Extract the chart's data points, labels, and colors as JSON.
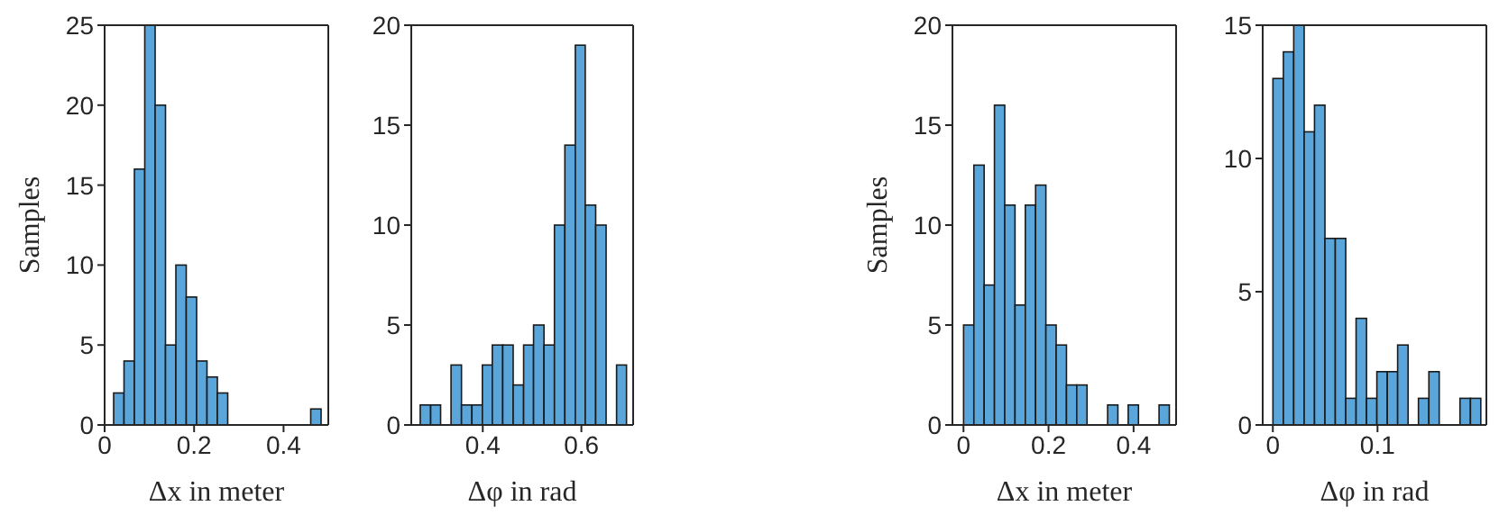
{
  "chart_data": [
    {
      "type": "histogram",
      "color": "#5aa5d9",
      "ylabel": "Samples",
      "xlabel": "Δx in meter",
      "xlim": [
        0,
        0.5
      ],
      "xticks": [
        0,
        0.2,
        0.4
      ],
      "ylim": [
        0,
        25
      ],
      "yticks": [
        0,
        5,
        10,
        15,
        20,
        25
      ],
      "bins": [
        0.02,
        0.043,
        0.066,
        0.089,
        0.112,
        0.135,
        0.158,
        0.181,
        0.204,
        0.227,
        0.25,
        0.273,
        0.296,
        0.319,
        0.342,
        0.365,
        0.388,
        0.411,
        0.434,
        0.457,
        0.48
      ],
      "values": [
        2,
        4,
        16,
        25,
        20,
        5,
        10,
        8,
        4,
        3,
        2,
        0,
        0,
        0,
        0,
        0,
        0,
        0,
        0,
        1
      ]
    },
    {
      "type": "histogram",
      "color": "#5aa5d9",
      "xlabel": "Δφ in rad",
      "xlim": [
        0.255,
        0.705
      ],
      "xticks": [
        0.4,
        0.6
      ],
      "ylim": [
        0,
        20
      ],
      "yticks": [
        0,
        5,
        10,
        15,
        20
      ],
      "bins": [
        0.273,
        0.294,
        0.314,
        0.335,
        0.356,
        0.377,
        0.398,
        0.418,
        0.439,
        0.46,
        0.481,
        0.501,
        0.522,
        0.543,
        0.564,
        0.585,
        0.605,
        0.626,
        0.647,
        0.668,
        0.688
      ],
      "values": [
        1,
        1,
        0,
        3,
        1,
        1,
        3,
        4,
        4,
        2,
        4,
        5,
        4,
        10,
        14,
        19,
        11,
        10,
        0,
        3
      ]
    },
    {
      "type": "histogram",
      "color": "#5aa5d9",
      "ylabel": "Samples",
      "xlabel": "Δx in meter",
      "xlim": [
        -0.026,
        0.5
      ],
      "xticks": [
        0,
        0.2,
        0.4
      ],
      "ylim": [
        0,
        20
      ],
      "yticks": [
        0,
        5,
        10,
        15,
        20
      ],
      "bins": [
        0,
        0.024,
        0.048,
        0.072,
        0.096,
        0.12,
        0.144,
        0.168,
        0.192,
        0.216,
        0.24,
        0.264,
        0.288,
        0.312,
        0.336,
        0.36,
        0.384,
        0.408,
        0.432,
        0.456,
        0.48
      ],
      "values": [
        5,
        13,
        7,
        16,
        11,
        6,
        11,
        12,
        5,
        4,
        2,
        2,
        0,
        0,
        1,
        0,
        1,
        0,
        0,
        1
      ]
    },
    {
      "type": "histogram",
      "color": "#5aa5d9",
      "xlabel": "Δφ in rad",
      "xlim": [
        -0.0097,
        0.204
      ],
      "xticks": [
        0,
        0.1
      ],
      "ylim": [
        0,
        15
      ],
      "yticks": [
        0,
        5,
        10,
        15
      ],
      "bins": [
        0,
        0.0099,
        0.0197,
        0.0296,
        0.0394,
        0.0493,
        0.0591,
        0.069,
        0.0788,
        0.0887,
        0.0985,
        0.1084,
        0.1182,
        0.1281,
        0.1379,
        0.1478,
        0.1576,
        0.1675,
        0.1773,
        0.1872,
        0.197
      ],
      "values": [
        13,
        14,
        15,
        11,
        12,
        7,
        7,
        1,
        4,
        1,
        2,
        2,
        3,
        0,
        1,
        2,
        0,
        0,
        1,
        1
      ]
    }
  ]
}
